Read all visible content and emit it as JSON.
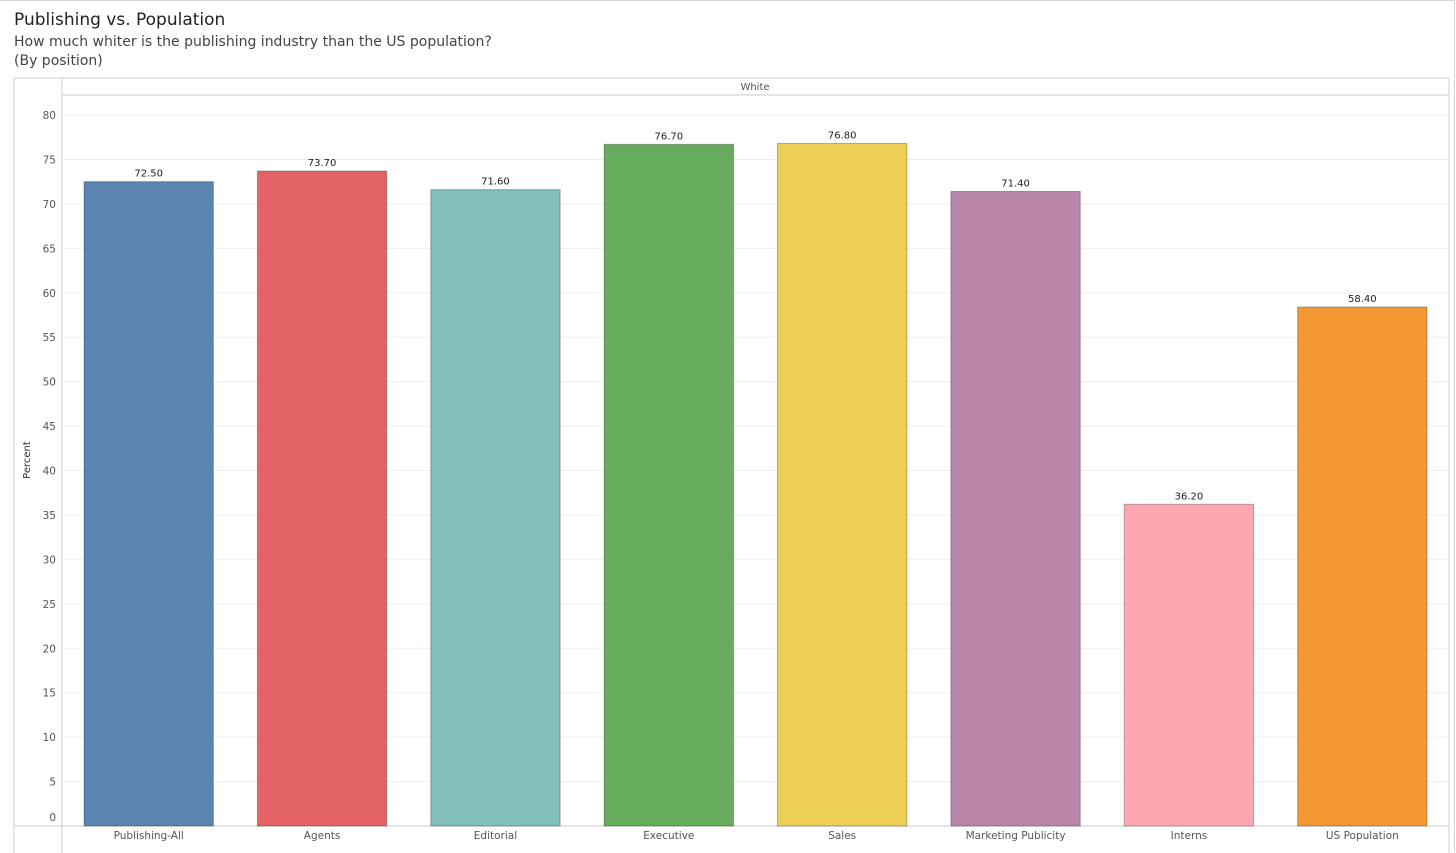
{
  "title": "Publishing vs. Population",
  "subtitle_line1": "How much whiter is the publishing industry than the US population?",
  "subtitle_line2": "(By position)",
  "chart_data": {
    "type": "bar",
    "panel_header": "White",
    "ylabel": "Percent",
    "xlabel": "",
    "ylim": [
      0,
      80
    ],
    "yticks": [
      0,
      5,
      10,
      15,
      20,
      25,
      30,
      35,
      40,
      45,
      50,
      55,
      60,
      65,
      70,
      75,
      80
    ],
    "grid": true,
    "categories": [
      "Publishing-All",
      "Agents",
      "Editorial",
      "Executive",
      "Sales",
      "Marketing Publicity",
      "Interns",
      "US Population"
    ],
    "values": [
      72.5,
      73.7,
      71.6,
      76.7,
      76.8,
      71.4,
      36.2,
      58.4
    ],
    "data_labels": [
      "72.50",
      "73.70",
      "71.60",
      "76.70",
      "76.80",
      "71.40",
      "36.20",
      "58.40"
    ],
    "colors": [
      "#5B85B0",
      "#E46466",
      "#83BFB9",
      "#66AC5C",
      "#EDCF55",
      "#B986AA",
      "#FEA7B0",
      "#F39833"
    ]
  }
}
